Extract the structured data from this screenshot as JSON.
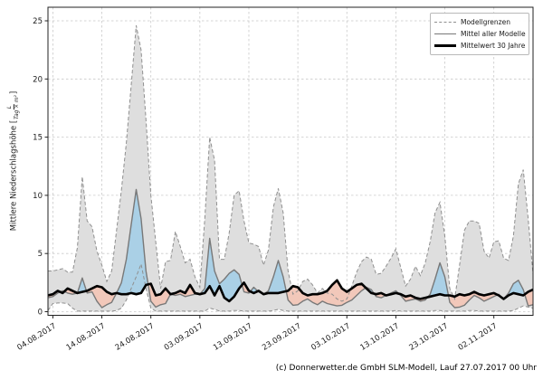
{
  "chart_data": {
    "type": "line",
    "title": "",
    "ylabel": {
      "text": "Mittlere Niederschlagshöhe",
      "bracket_open": "[",
      "bracket_close": "]",
      "unit_numerator": "L",
      "unit_denominator": "Tag × m²"
    },
    "y_ticks": [
      0,
      5,
      10,
      15,
      20,
      25
    ],
    "ylim": [
      -0.3,
      26.2
    ],
    "grid": true,
    "x_tick_labels": [
      "04.08.2017",
      "14.08.2017",
      "24.08.2017",
      "03.09.2017",
      "13.09.2017",
      "23.09.2017",
      "03.10.2017",
      "13.10.2017",
      "23.10.2017",
      "02.11.2017"
    ],
    "x_tick_day_index": [
      1,
      11,
      21,
      31,
      41,
      51,
      61,
      71,
      81,
      91
    ],
    "x_days_total": 99,
    "legend": {
      "position": "top-right",
      "entries": [
        {
          "label": "Modellgrenzen",
          "style": "dashed-gray"
        },
        {
          "label": "Mittel aller Modelle",
          "style": "solid-gray"
        },
        {
          "label": "Mittelwert 30 Jahre",
          "style": "thick-black"
        }
      ]
    },
    "colors": {
      "range_fill": "#dedede",
      "bound_line": "#8f8f8f",
      "mean_line": "#787878",
      "clim_line": "#000000",
      "above_fill": "#aad0e6",
      "below_fill": "#f2c8ba",
      "grid": "#c9c9c9",
      "spine": "#222222",
      "text": "#1a1a1a"
    },
    "series": [
      {
        "name": "Modellgrenzen obere Grenze",
        "role": "upper_bound",
        "values": [
          3.5,
          3.5,
          3.6,
          3.7,
          3.4,
          3.4,
          5.5,
          11.6,
          7.8,
          7.3,
          5.2,
          4.0,
          2.6,
          3.5,
          7.0,
          10.5,
          14.5,
          19.5,
          24.6,
          22.5,
          16.5,
          10.0,
          6.0,
          2.0,
          4.3,
          4.4,
          6.9,
          5.6,
          4.2,
          4.5,
          3.0,
          2.1,
          8.0,
          15.0,
          13.0,
          4.5,
          4.5,
          6.8,
          10.0,
          10.4,
          7.8,
          5.9,
          5.8,
          5.6,
          4.0,
          5.3,
          9.0,
          10.6,
          8.5,
          3.5,
          1.5,
          1.8,
          2.6,
          2.8,
          2.3,
          1.6,
          2.0,
          1.6,
          1.5,
          1.1,
          0.9,
          1.1,
          2.2,
          3.4,
          4.3,
          4.7,
          4.5,
          3.2,
          3.3,
          3.9,
          4.6,
          5.4,
          3.8,
          2.2,
          2.8,
          3.9,
          3.1,
          4.2,
          6.0,
          8.5,
          9.4,
          6.5,
          2.0,
          1.1,
          4.0,
          7.0,
          7.8,
          7.8,
          7.6,
          5.2,
          4.6,
          6.0,
          6.1,
          4.6,
          4.4,
          6.5,
          11.0,
          12.2,
          8.0,
          3.2
        ]
      },
      {
        "name": "Modellgrenzen untere Grenze",
        "role": "lower_bound",
        "values": [
          0.1,
          0.7,
          0.75,
          0.75,
          0.7,
          0.3,
          0.05,
          0.05,
          0.05,
          0.05,
          0.05,
          0.05,
          0.05,
          0.05,
          0.1,
          0.3,
          1.0,
          2.0,
          3.0,
          4.1,
          2.0,
          0.3,
          0.05,
          0.05,
          0.05,
          0.05,
          0.05,
          0.05,
          0.05,
          0.05,
          0.05,
          0.05,
          0.05,
          0.3,
          0.2,
          0.05,
          0.05,
          0.05,
          0.1,
          0.1,
          0.05,
          0.05,
          0.05,
          0.05,
          0.05,
          0.05,
          0.1,
          0.2,
          0.1,
          0.05,
          0.05,
          0.05,
          0.05,
          0.05,
          0.05,
          0.05,
          0.05,
          0.05,
          0.05,
          0.05,
          0.05,
          0.05,
          0.05,
          0.05,
          0.05,
          0.05,
          0.05,
          0.05,
          0.05,
          0.05,
          0.05,
          0.1,
          0.05,
          0.05,
          0.05,
          0.05,
          0.05,
          0.05,
          0.05,
          0.1,
          0.1,
          0.05,
          0.05,
          0.05,
          0.05,
          0.05,
          0.1,
          0.1,
          0.05,
          0.05,
          0.05,
          0.05,
          0.05,
          0.05,
          0.05,
          0.1,
          0.3,
          0.5,
          0.4,
          0.3
        ]
      },
      {
        "name": "Mittel aller Modelle",
        "role": "model_mean",
        "values": [
          1.2,
          1.3,
          1.6,
          1.8,
          1.6,
          1.5,
          1.6,
          2.9,
          1.6,
          1.7,
          0.9,
          0.35,
          0.6,
          0.8,
          1.6,
          2.5,
          4.5,
          7.5,
          10.5,
          8.0,
          3.5,
          0.9,
          0.4,
          0.6,
          0.7,
          1.5,
          1.4,
          1.5,
          1.3,
          1.4,
          1.5,
          1.5,
          2.0,
          6.3,
          3.5,
          2.4,
          2.8,
          3.3,
          3.6,
          3.2,
          1.7,
          1.6,
          2.1,
          1.7,
          1.5,
          1.8,
          3.0,
          4.4,
          3.0,
          1.0,
          0.55,
          0.6,
          0.9,
          1.1,
          0.8,
          0.6,
          0.9,
          0.7,
          0.6,
          0.5,
          0.55,
          0.8,
          1.0,
          1.4,
          1.8,
          2.1,
          1.9,
          1.3,
          1.2,
          1.4,
          1.6,
          1.8,
          1.4,
          0.9,
          1.0,
          1.1,
          0.9,
          1.0,
          1.5,
          2.8,
          4.2,
          3.0,
          0.8,
          0.35,
          0.4,
          0.55,
          1.0,
          1.4,
          1.2,
          0.9,
          1.1,
          1.3,
          1.5,
          1.1,
          1.6,
          2.4,
          2.7,
          1.9,
          0.5,
          0.6
        ]
      },
      {
        "name": "Mittelwert 30 Jahre",
        "role": "climatology",
        "values": [
          1.4,
          1.5,
          1.8,
          1.6,
          2.0,
          1.8,
          1.6,
          1.7,
          1.8,
          2.0,
          2.2,
          2.1,
          1.7,
          1.5,
          1.6,
          1.5,
          1.5,
          1.6,
          1.5,
          1.6,
          2.3,
          2.4,
          1.4,
          1.5,
          2.0,
          1.5,
          1.6,
          1.8,
          1.6,
          2.3,
          1.6,
          1.5,
          1.6,
          2.2,
          1.4,
          2.2,
          1.2,
          0.9,
          1.3,
          2.0,
          2.5,
          1.8,
          1.6,
          1.8,
          1.5,
          1.6,
          1.6,
          1.6,
          1.7,
          1.8,
          2.2,
          2.1,
          1.6,
          1.4,
          1.5,
          1.5,
          1.6,
          1.8,
          2.3,
          2.7,
          2.0,
          1.7,
          2.0,
          2.3,
          2.4,
          2.0,
          1.6,
          1.5,
          1.6,
          1.4,
          1.5,
          1.6,
          1.5,
          1.3,
          1.4,
          1.2,
          1.1,
          1.2,
          1.3,
          1.4,
          1.5,
          1.4,
          1.4,
          1.3,
          1.5,
          1.4,
          1.5,
          1.7,
          1.5,
          1.4,
          1.5,
          1.6,
          1.4,
          1.1,
          1.4,
          1.6,
          1.5,
          1.4,
          1.7,
          1.9
        ]
      }
    ]
  },
  "footer": {
    "credit": "(c) Donnerwetter.de GmbH SLM-Modell, Lauf 27.07.2017 00 Uhr"
  }
}
